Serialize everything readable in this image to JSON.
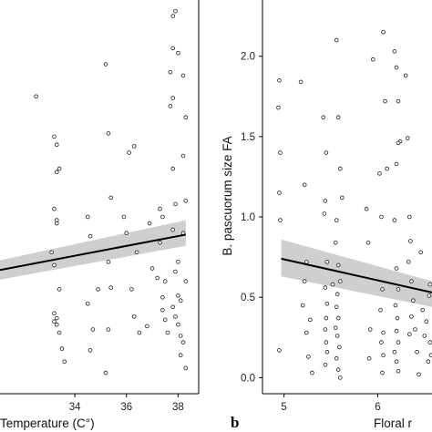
{
  "chart_data": [
    {
      "type": "scatter",
      "panel_letter": "",
      "xlabel": "Temperature (C°)",
      "ylabel": "",
      "xticks": [
        34,
        36,
        38
      ],
      "xlim": [
        31.1,
        38.8
      ],
      "ylim": [
        -0.1,
        2.35
      ],
      "grid": false,
      "fit": {
        "x": [
          31.1,
          38.3
        ],
        "y": [
          0.67,
          0.89
        ],
        "ci_lo": [
          0.61,
          0.82
        ],
        "ci_hi": [
          0.73,
          0.98
        ]
      },
      "points": [
        [
          32.5,
          1.75
        ],
        [
          33.2,
          1.5
        ],
        [
          33.3,
          1.45
        ],
        [
          33.3,
          1.28
        ],
        [
          33.4,
          1.3
        ],
        [
          33.2,
          1.05
        ],
        [
          33.3,
          0.98
        ],
        [
          33.3,
          0.96
        ],
        [
          33.1,
          0.78
        ],
        [
          33.2,
          0.7
        ],
        [
          33.4,
          0.55
        ],
        [
          33.2,
          0.4
        ],
        [
          33.3,
          0.37
        ],
        [
          33.2,
          0.35
        ],
        [
          33.3,
          0.33
        ],
        [
          33.4,
          0.28
        ],
        [
          33.5,
          0.18
        ],
        [
          33.6,
          0.1
        ],
        [
          34.5,
          1.0
        ],
        [
          34.6,
          0.88
        ],
        [
          34.9,
          0.55
        ],
        [
          34.5,
          0.46
        ],
        [
          34.7,
          0.3
        ],
        [
          34.6,
          0.17
        ],
        [
          35.2,
          1.95
        ],
        [
          35.3,
          1.52
        ],
        [
          35.4,
          1.12
        ],
        [
          35.3,
          0.72
        ],
        [
          35.4,
          0.56
        ],
        [
          35.3,
          0.3
        ],
        [
          35.2,
          0.03
        ],
        [
          35.9,
          1.0
        ],
        [
          36.0,
          0.9
        ],
        [
          36.1,
          1.4
        ],
        [
          36.3,
          1.44
        ],
        [
          36.2,
          0.55
        ],
        [
          36.4,
          0.78
        ],
        [
          36.3,
          0.38
        ],
        [
          36.5,
          0.28
        ],
        [
          36.8,
          0.32
        ],
        [
          36.9,
          0.96
        ],
        [
          37.0,
          0.68
        ],
        [
          37.3,
          1.05
        ],
        [
          37.4,
          1.0
        ],
        [
          37.3,
          0.84
        ],
        [
          37.5,
          0.6
        ],
        [
          37.4,
          0.42
        ],
        [
          37.5,
          0.36
        ],
        [
          37.6,
          0.28
        ],
        [
          37.4,
          0.5
        ],
        [
          37.2,
          0.62
        ],
        [
          37.8,
          2.25
        ],
        [
          37.9,
          2.28
        ],
        [
          37.8,
          2.05
        ],
        [
          38.0,
          2.02
        ],
        [
          37.7,
          1.9
        ],
        [
          37.8,
          1.74
        ],
        [
          37.7,
          1.69
        ],
        [
          37.8,
          1.3
        ],
        [
          37.9,
          1.08
        ],
        [
          37.8,
          0.92
        ],
        [
          38.0,
          0.72
        ],
        [
          37.9,
          0.66
        ],
        [
          38.0,
          0.51
        ],
        [
          37.8,
          0.44
        ],
        [
          37.9,
          0.38
        ],
        [
          38.0,
          0.33
        ],
        [
          38.1,
          0.26
        ],
        [
          38.2,
          1.88
        ],
        [
          38.3,
          1.62
        ],
        [
          38.2,
          1.38
        ],
        [
          38.3,
          1.1
        ],
        [
          38.2,
          0.9
        ],
        [
          38.3,
          0.6
        ],
        [
          38.1,
          0.48
        ],
        [
          38.2,
          0.22
        ],
        [
          38.3,
          0.06
        ],
        [
          38.1,
          0.14
        ]
      ]
    },
    {
      "type": "scatter",
      "panel_letter": "b",
      "xlabel": "Floral r",
      "ylabel": "B. pascuorum size FA",
      "xticks": [
        5,
        6
      ],
      "yticks": [
        0.0,
        0.5,
        1.0,
        1.5,
        2.0
      ],
      "xlim": [
        4.77,
        6.58
      ],
      "ylim": [
        -0.1,
        2.35
      ],
      "grid": false,
      "fit": {
        "x": [
          4.97,
          6.58
        ],
        "y": [
          0.74,
          0.53
        ],
        "ci_lo": [
          0.63,
          0.44
        ],
        "ci_hi": [
          0.86,
          0.6
        ]
      },
      "points": [
        [
          4.95,
          1.85
        ],
        [
          4.94,
          1.68
        ],
        [
          4.96,
          1.4
        ],
        [
          4.95,
          1.15
        ],
        [
          4.96,
          0.98
        ],
        [
          4.95,
          0.17
        ],
        [
          5.18,
          1.84
        ],
        [
          5.22,
          1.2
        ],
        [
          5.24,
          0.72
        ],
        [
          5.22,
          0.6
        ],
        [
          5.2,
          0.45
        ],
        [
          5.24,
          0.28
        ],
        [
          5.28,
          0.36
        ],
        [
          5.26,
          0.13
        ],
        [
          5.3,
          0.03
        ],
        [
          5.42,
          1.62
        ],
        [
          5.45,
          1.4
        ],
        [
          5.44,
          1.1
        ],
        [
          5.43,
          1.02
        ],
        [
          5.46,
          0.72
        ],
        [
          5.44,
          0.56
        ],
        [
          5.46,
          0.46
        ],
        [
          5.45,
          0.37
        ],
        [
          5.44,
          0.3
        ],
        [
          5.45,
          0.22
        ],
        [
          5.46,
          0.16
        ],
        [
          5.44,
          0.08
        ],
        [
          5.56,
          2.1
        ],
        [
          5.58,
          1.62
        ],
        [
          5.6,
          1.3
        ],
        [
          5.62,
          1.12
        ],
        [
          5.56,
          0.98
        ],
        [
          5.55,
          0.84
        ],
        [
          5.58,
          0.7
        ],
        [
          5.6,
          0.6
        ],
        [
          5.57,
          0.52
        ],
        [
          5.56,
          0.44
        ],
        [
          5.58,
          0.37
        ],
        [
          5.55,
          0.31
        ],
        [
          5.57,
          0.26
        ],
        [
          5.59,
          0.19
        ],
        [
          5.56,
          0.12
        ],
        [
          5.58,
          0.05
        ],
        [
          5.6,
          0.0
        ],
        [
          5.52,
          0.58
        ],
        [
          5.88,
          1.05
        ],
        [
          5.9,
          0.84
        ],
        [
          5.92,
          0.3
        ],
        [
          5.91,
          0.12
        ],
        [
          5.95,
          1.98
        ],
        [
          6.02,
          1.27
        ],
        [
          6.04,
          1.0
        ],
        [
          6.05,
          0.55
        ],
        [
          6.03,
          0.42
        ],
        [
          6.06,
          0.28
        ],
        [
          6.04,
          0.22
        ],
        [
          6.06,
          0.14
        ],
        [
          6.05,
          0.03
        ],
        [
          6.08,
          1.72
        ],
        [
          6.1,
          1.3
        ],
        [
          6.06,
          2.15
        ],
        [
          6.18,
          2.03
        ],
        [
          6.2,
          1.93
        ],
        [
          6.22,
          1.72
        ],
        [
          6.24,
          1.47
        ],
        [
          6.22,
          1.46
        ],
        [
          6.2,
          1.33
        ],
        [
          6.18,
          0.98
        ],
        [
          6.2,
          0.68
        ],
        [
          6.22,
          0.55
        ],
        [
          6.19,
          0.45
        ],
        [
          6.21,
          0.37
        ],
        [
          6.2,
          0.29
        ],
        [
          6.22,
          0.22
        ],
        [
          6.18,
          0.16
        ],
        [
          6.2,
          0.1
        ],
        [
          6.22,
          0.04
        ],
        [
          6.3,
          1.88
        ],
        [
          6.32,
          1.49
        ],
        [
          6.34,
          1.0
        ],
        [
          6.35,
          0.85
        ],
        [
          6.33,
          0.72
        ],
        [
          6.36,
          0.6
        ],
        [
          6.38,
          0.48
        ],
        [
          6.36,
          0.38
        ],
        [
          6.34,
          0.27
        ],
        [
          6.4,
          0.3
        ],
        [
          6.42,
          0.16
        ],
        [
          6.44,
          0.02
        ],
        [
          6.46,
          0.78
        ],
        [
          6.48,
          0.42
        ],
        [
          6.5,
          0.26
        ],
        [
          6.52,
          0.35
        ],
        [
          6.54,
          0.1
        ],
        [
          6.56,
          0.58
        ],
        [
          6.55,
          0.51
        ],
        [
          6.56,
          0.22
        ],
        [
          6.57,
          0.14
        ]
      ]
    }
  ]
}
